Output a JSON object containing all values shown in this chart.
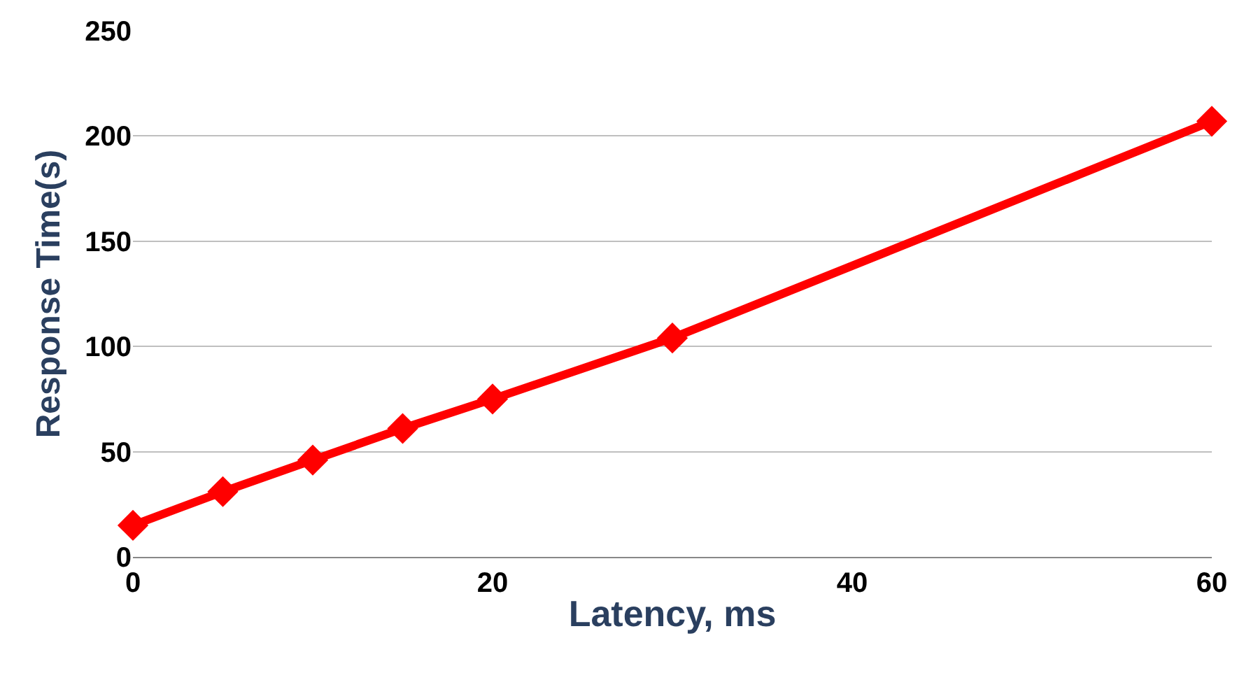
{
  "chart_data": {
    "type": "line",
    "xlabel": "Latency, ms",
    "ylabel": "Response Time(s)",
    "x": [
      0,
      5,
      10,
      15,
      20,
      30,
      60
    ],
    "series": [
      {
        "color": "#ff0000",
        "values": [
          15,
          31,
          46,
          61,
          75,
          104,
          207
        ]
      }
    ],
    "xlim": [
      0,
      60
    ],
    "xticks": [
      0,
      20,
      40,
      60
    ],
    "ylim": [
      0,
      250
    ],
    "yticks": [
      0,
      50,
      100,
      150,
      200,
      250
    ],
    "grid": "y",
    "marker": "diamond",
    "line_style": "solid"
  }
}
